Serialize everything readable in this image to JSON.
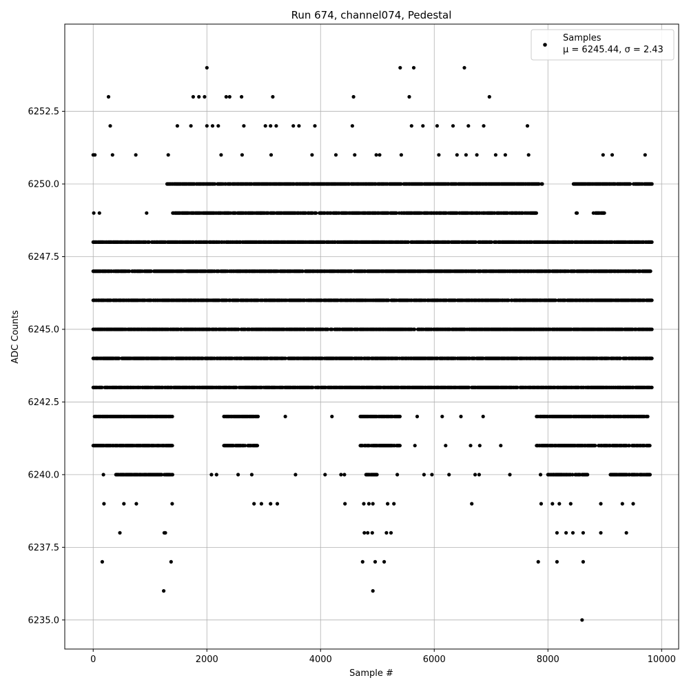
{
  "chart_data": {
    "type": "scatter",
    "title": "Run 674, channel074, Pedestal",
    "xlabel": "Sample #",
    "ylabel": "ADC Counts",
    "xlim": [
      -500,
      10300
    ],
    "ylim": [
      6234.0,
      6255.5
    ],
    "xticks": [
      0,
      2000,
      4000,
      6000,
      8000,
      10000
    ],
    "yticks": [
      6235.0,
      6237.5,
      6240.0,
      6242.5,
      6245.0,
      6247.5,
      6250.0,
      6252.5
    ],
    "xtick_labels": [
      "0",
      "2000",
      "4000",
      "6000",
      "8000",
      "10000"
    ],
    "ytick_labels": [
      "6235.0",
      "6237.5",
      "6240.0",
      "6242.5",
      "6245.0",
      "6247.5",
      "6250.0",
      "6252.5"
    ],
    "grid": true,
    "legend_position": "top-right",
    "marker_color": "#000000",
    "series": [
      {
        "name": "Samples",
        "stats_label": "μ = 6245.44, σ = 2.43",
        "level_segments": [
          {
            "y": 6243,
            "ranges": [
              [
                0,
                9830
              ]
            ]
          },
          {
            "y": 6244,
            "ranges": [
              [
                0,
                9830
              ]
            ]
          },
          {
            "y": 6245,
            "ranges": [
              [
                0,
                9830
              ]
            ]
          },
          {
            "y": 6246,
            "ranges": [
              [
                0,
                9830
              ]
            ]
          },
          {
            "y": 6247,
            "ranges": [
              [
                0,
                9830
              ]
            ]
          },
          {
            "y": 6248,
            "ranges": [
              [
                0,
                9830
              ]
            ]
          },
          {
            "y": 6249,
            "ranges": [
              [
                1400,
                7800
              ],
              [
                8500,
                8520
              ],
              [
                8800,
                9000
              ]
            ]
          },
          {
            "y": 6250,
            "ranges": [
              [
                1300,
                7900
              ],
              [
                8450,
                9830
              ]
            ]
          },
          {
            "y": 6242,
            "ranges": [
              [
                0,
                1400
              ],
              [
                2300,
                2900
              ],
              [
                4700,
                5400
              ],
              [
                7800,
                9800
              ]
            ]
          },
          {
            "y": 6241,
            "ranges": [
              [
                0,
                1400
              ],
              [
                2300,
                2900
              ],
              [
                4700,
                5400
              ],
              [
                7800,
                9800
              ]
            ]
          },
          {
            "y": 6240,
            "ranges": [
              [
                400,
                1400
              ],
              [
                4800,
                5000
              ],
              [
                8000,
                8700
              ],
              [
                9100,
                9800
              ]
            ]
          }
        ],
        "sparse_points": [
          [
            0,
            6251
          ],
          [
            30,
            6251
          ],
          [
            270,
            6253
          ],
          [
            300,
            6252
          ],
          [
            340,
            6251
          ],
          [
            750,
            6251
          ],
          [
            1320,
            6251
          ],
          [
            1480,
            6252
          ],
          [
            1720,
            6252
          ],
          [
            1760,
            6253
          ],
          [
            1860,
            6253
          ],
          [
            1960,
            6253
          ],
          [
            2000,
            6254
          ],
          [
            2000,
            6252
          ],
          [
            2100,
            6252
          ],
          [
            2200,
            6252
          ],
          [
            2250,
            6251
          ],
          [
            2340,
            6253
          ],
          [
            2400,
            6253
          ],
          [
            2610,
            6253
          ],
          [
            2650,
            6252
          ],
          [
            2620,
            6251
          ],
          [
            3030,
            6252
          ],
          [
            3120,
            6252
          ],
          [
            3160,
            6253
          ],
          [
            3220,
            6252
          ],
          [
            3130,
            6251
          ],
          [
            3520,
            6252
          ],
          [
            3620,
            6252
          ],
          [
            3850,
            6251
          ],
          [
            3900,
            6252
          ],
          [
            4270,
            6251
          ],
          [
            4580,
            6253
          ],
          [
            4560,
            6252
          ],
          [
            4600,
            6251
          ],
          [
            4980,
            6251
          ],
          [
            5040,
            6251
          ],
          [
            5400,
            6254
          ],
          [
            5420,
            6251
          ],
          [
            5560,
            6253
          ],
          [
            5600,
            6252
          ],
          [
            5640,
            6254
          ],
          [
            5800,
            6252
          ],
          [
            6050,
            6252
          ],
          [
            6080,
            6251
          ],
          [
            6330,
            6252
          ],
          [
            6400,
            6251
          ],
          [
            6530,
            6254
          ],
          [
            6560,
            6251
          ],
          [
            6600,
            6252
          ],
          [
            6750,
            6251
          ],
          [
            6870,
            6252
          ],
          [
            6970,
            6253
          ],
          [
            7080,
            6251
          ],
          [
            7250,
            6251
          ],
          [
            7640,
            6252
          ],
          [
            7660,
            6251
          ],
          [
            8970,
            6251
          ],
          [
            9130,
            6251
          ],
          [
            9710,
            6251
          ],
          [
            10,
            6249
          ],
          [
            110,
            6249
          ],
          [
            940,
            6249
          ],
          [
            2950,
            6249
          ],
          [
            180,
            6240
          ],
          [
            190,
            6239
          ],
          [
            470,
            6238
          ],
          [
            160,
            6237
          ],
          [
            1240,
            6236
          ],
          [
            1370,
            6237
          ],
          [
            1250,
            6238
          ],
          [
            1270,
            6238
          ],
          [
            1390,
            6239
          ],
          [
            540,
            6239
          ],
          [
            760,
            6239
          ],
          [
            2080,
            6240
          ],
          [
            2170,
            6240
          ],
          [
            2550,
            6240
          ],
          [
            2790,
            6240
          ],
          [
            3560,
            6240
          ],
          [
            4080,
            6240
          ],
          [
            4360,
            6240
          ],
          [
            4420,
            6240
          ],
          [
            5350,
            6240
          ],
          [
            5820,
            6240
          ],
          [
            5960,
            6240
          ],
          [
            6260,
            6240
          ],
          [
            6720,
            6240
          ],
          [
            6790,
            6240
          ],
          [
            7330,
            6240
          ],
          [
            7870,
            6240
          ],
          [
            2830,
            6239
          ],
          [
            2960,
            6239
          ],
          [
            3120,
            6239
          ],
          [
            3240,
            6239
          ],
          [
            4430,
            6239
          ],
          [
            4760,
            6239
          ],
          [
            4850,
            6239
          ],
          [
            4920,
            6239
          ],
          [
            5180,
            6239
          ],
          [
            5290,
            6239
          ],
          [
            6660,
            6239
          ],
          [
            7880,
            6239
          ],
          [
            8080,
            6239
          ],
          [
            8200,
            6239
          ],
          [
            8400,
            6239
          ],
          [
            8930,
            6239
          ],
          [
            9310,
            6239
          ],
          [
            9500,
            6239
          ],
          [
            4770,
            6238
          ],
          [
            4830,
            6238
          ],
          [
            4910,
            6238
          ],
          [
            5160,
            6238
          ],
          [
            5240,
            6238
          ],
          [
            8160,
            6238
          ],
          [
            8320,
            6238
          ],
          [
            8440,
            6238
          ],
          [
            8620,
            6238
          ],
          [
            8930,
            6238
          ],
          [
            9380,
            6238
          ],
          [
            4740,
            6237
          ],
          [
            4960,
            6237
          ],
          [
            5120,
            6237
          ],
          [
            7830,
            6237
          ],
          [
            8160,
            6237
          ],
          [
            8620,
            6237
          ],
          [
            4920,
            6236
          ],
          [
            8600,
            6235
          ],
          [
            5660,
            6241
          ],
          [
            6200,
            6241
          ],
          [
            6640,
            6241
          ],
          [
            6800,
            6241
          ],
          [
            7170,
            6241
          ],
          [
            3380,
            6242
          ],
          [
            4200,
            6242
          ],
          [
            5700,
            6242
          ],
          [
            6140,
            6242
          ],
          [
            6470,
            6242
          ],
          [
            6860,
            6242
          ]
        ]
      }
    ]
  }
}
